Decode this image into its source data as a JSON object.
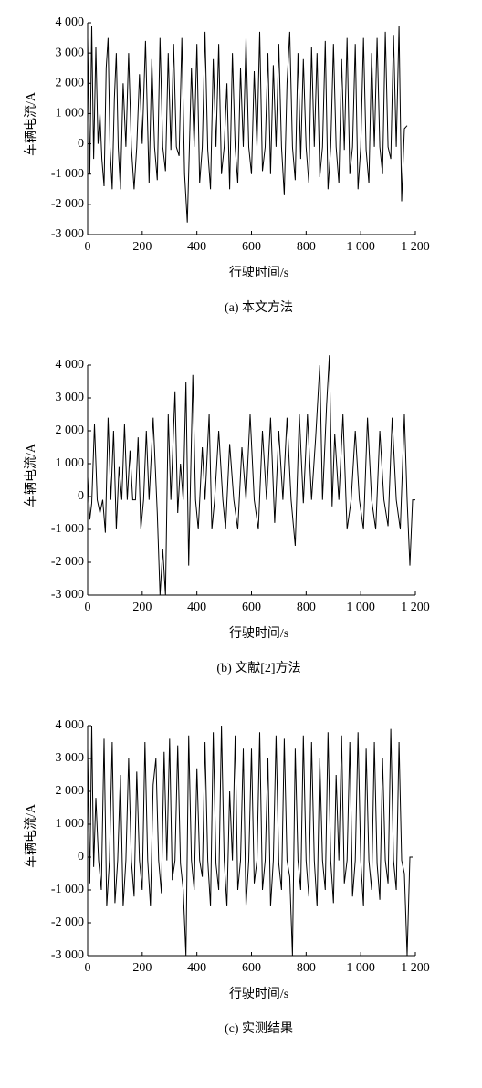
{
  "chart_data": [
    {
      "type": "line",
      "x_label": "行驶时间/s",
      "y_label": "车辆电流/A",
      "caption": "(a) 本文方法",
      "color": "#000000",
      "xlim": [
        0,
        1200
      ],
      "ylim": [
        -3000,
        4000
      ],
      "xticks": [
        0,
        200,
        400,
        600,
        800,
        {
          "value": 1000,
          "label": "1 000"
        },
        {
          "value": 1200,
          "label": "1 200"
        }
      ],
      "yticks": [
        {
          "value": -3000,
          "label": "-3 000"
        },
        {
          "value": -2000,
          "label": "-2 000"
        },
        {
          "value": -1000,
          "label": "-1 000"
        },
        0,
        {
          "value": 1000,
          "label": "1 000"
        },
        {
          "value": 2000,
          "label": "2 000"
        },
        {
          "value": 3000,
          "label": "3 000"
        },
        {
          "value": 4000,
          "label": "4 000"
        }
      ],
      "x": [
        0,
        8,
        15,
        22,
        30,
        38,
        45,
        52,
        60,
        68,
        75,
        82,
        90,
        98,
        105,
        112,
        120,
        130,
        140,
        150,
        160,
        170,
        180,
        190,
        200,
        212,
        225,
        235,
        245,
        255,
        265,
        275,
        285,
        295,
        305,
        315,
        325,
        335,
        345,
        355,
        365,
        372,
        380,
        390,
        400,
        410,
        420,
        430,
        440,
        450,
        460,
        470,
        480,
        490,
        500,
        510,
        520,
        530,
        540,
        550,
        560,
        570,
        580,
        590,
        600,
        610,
        620,
        630,
        640,
        650,
        660,
        670,
        680,
        690,
        700,
        710,
        720,
        730,
        740,
        750,
        760,
        770,
        780,
        790,
        800,
        810,
        820,
        830,
        840,
        850,
        860,
        870,
        880,
        890,
        900,
        910,
        920,
        930,
        940,
        950,
        960,
        970,
        980,
        990,
        1000,
        1010,
        1020,
        1030,
        1040,
        1050,
        1060,
        1070,
        1080,
        1090,
        1100,
        1110,
        1120,
        1130,
        1140,
        1150,
        1160,
        1170
      ],
      "values": [
        3500,
        -1000,
        3900,
        -500,
        3200,
        0,
        1000,
        -500,
        -1400,
        2500,
        3500,
        -100,
        -1500,
        1500,
        3000,
        -100,
        -1500,
        2000,
        -100,
        3000,
        -100,
        -1500,
        -100,
        2300,
        0,
        3400,
        -1300,
        2800,
        -100,
        -1200,
        3500,
        -100,
        -900,
        3000,
        -200,
        3300,
        -100,
        -400,
        3500,
        -1000,
        -2600,
        -300,
        2500,
        -100,
        3300,
        -1300,
        -100,
        3700,
        -200,
        -1500,
        2800,
        -100,
        3300,
        -1000,
        -100,
        2000,
        -1500,
        3000,
        -100,
        -1300,
        2500,
        -100,
        3500,
        -100,
        -1000,
        2400,
        -100,
        3700,
        -900,
        -100,
        3000,
        -1000,
        2600,
        -100,
        3300,
        -100,
        -1700,
        2000,
        3700,
        -100,
        -1200,
        3000,
        -500,
        2800,
        -100,
        -1300,
        3200,
        -100,
        3000,
        -1100,
        -100,
        3400,
        -1500,
        -100,
        3300,
        -100,
        -1300,
        2800,
        -200,
        3500,
        -1000,
        -100,
        3300,
        -1500,
        -100,
        3500,
        -200,
        -1300,
        3000,
        -100,
        3500,
        -100,
        -1000,
        3700,
        -100,
        -500,
        3600,
        -100,
        3900,
        -1900,
        500,
        600
      ]
    },
    {
      "type": "line",
      "x_label": "行驶时间/s",
      "y_label": "车辆电流/A",
      "caption": "(b) 文献[2]方法",
      "color": "#000000",
      "xlim": [
        0,
        1200
      ],
      "ylim": [
        -3000,
        4000
      ],
      "xticks": [
        0,
        200,
        400,
        600,
        800,
        {
          "value": 1000,
          "label": "1 000"
        },
        {
          "value": 1200,
          "label": "1 200"
        }
      ],
      "yticks": [
        {
          "value": -3000,
          "label": "-3 000"
        },
        {
          "value": -2000,
          "label": "-2 000"
        },
        {
          "value": -1000,
          "label": "-1 000"
        },
        0,
        {
          "value": 1000,
          "label": "1 000"
        },
        {
          "value": 2000,
          "label": "2 000"
        },
        {
          "value": 3000,
          "label": "3 000"
        },
        {
          "value": 4000,
          "label": "4 000"
        }
      ],
      "x": [
        0,
        8,
        15,
        25,
        35,
        45,
        55,
        65,
        75,
        85,
        95,
        105,
        115,
        125,
        135,
        145,
        155,
        165,
        175,
        185,
        195,
        205,
        215,
        225,
        240,
        255,
        265,
        275,
        285,
        295,
        305,
        320,
        330,
        340,
        350,
        360,
        370,
        385,
        395,
        405,
        420,
        430,
        445,
        455,
        465,
        480,
        495,
        505,
        520,
        535,
        550,
        565,
        580,
        595,
        610,
        625,
        640,
        655,
        670,
        685,
        700,
        715,
        730,
        745,
        760,
        775,
        790,
        805,
        820,
        835,
        850,
        860,
        875,
        885,
        895,
        905,
        920,
        935,
        950,
        965,
        980,
        995,
        1010,
        1025,
        1040,
        1055,
        1070,
        1085,
        1100,
        1115,
        1130,
        1145,
        1160,
        1170,
        1180,
        1190,
        1200
      ],
      "values": [
        600,
        -700,
        -200,
        2200,
        -100,
        -500,
        -100,
        -1100,
        2400,
        -100,
        2000,
        -1000,
        900,
        -100,
        2200,
        -100,
        1400,
        -100,
        -100,
        1800,
        -1000,
        -100,
        2000,
        -100,
        2400,
        -500,
        -3000,
        -1600,
        -3000,
        2500,
        -100,
        3200,
        -500,
        1000,
        -100,
        3500,
        -2100,
        3700,
        -100,
        -1000,
        1500,
        -100,
        2500,
        -1000,
        -100,
        2000,
        -100,
        -1000,
        1600,
        -100,
        -1000,
        1500,
        -100,
        2500,
        -100,
        -1000,
        2000,
        -100,
        2400,
        -800,
        2000,
        -100,
        2400,
        -100,
        -1500,
        2500,
        -200,
        2500,
        -100,
        1800,
        4000,
        -100,
        2800,
        4300,
        -300,
        1900,
        -100,
        2500,
        -1000,
        -100,
        2000,
        -100,
        -1000,
        2400,
        -100,
        -1000,
        2000,
        -100,
        -900,
        2400,
        -100,
        -1000,
        2500,
        -100,
        -2100,
        -100,
        -100
      ]
    },
    {
      "type": "line",
      "x_label": "行驶时间/s",
      "y_label": "车辆电流/A",
      "caption": "(c) 实测结果",
      "color": "#000000",
      "xlim": [
        0,
        1200
      ],
      "ylim": [
        -3000,
        4000
      ],
      "xticks": [
        0,
        200,
        400,
        600,
        800,
        {
          "value": 1000,
          "label": "1 000"
        },
        {
          "value": 1200,
          "label": "1 200"
        }
      ],
      "yticks": [
        {
          "value": -3000,
          "label": "-3 000"
        },
        {
          "value": -2000,
          "label": "-2 000"
        },
        {
          "value": -1000,
          "label": "-1 000"
        },
        0,
        {
          "value": 1000,
          "label": "1 000"
        },
        {
          "value": 2000,
          "label": "2 000"
        },
        {
          "value": 3000,
          "label": "3 000"
        },
        {
          "value": 4000,
          "label": "4 000"
        }
      ],
      "x": [
        0,
        8,
        15,
        22,
        30,
        40,
        50,
        60,
        70,
        80,
        90,
        100,
        110,
        120,
        130,
        140,
        150,
        160,
        170,
        180,
        190,
        200,
        210,
        220,
        230,
        240,
        250,
        260,
        270,
        280,
        290,
        300,
        310,
        320,
        330,
        340,
        350,
        360,
        370,
        380,
        390,
        400,
        410,
        420,
        430,
        440,
        450,
        460,
        470,
        480,
        490,
        500,
        510,
        520,
        530,
        540,
        550,
        560,
        570,
        580,
        590,
        600,
        610,
        620,
        630,
        640,
        650,
        660,
        670,
        680,
        690,
        700,
        710,
        720,
        730,
        740,
        750,
        760,
        770,
        780,
        790,
        800,
        810,
        820,
        830,
        840,
        850,
        860,
        870,
        880,
        890,
        900,
        910,
        920,
        930,
        940,
        950,
        960,
        970,
        980,
        990,
        1000,
        1010,
        1020,
        1030,
        1040,
        1050,
        1060,
        1070,
        1080,
        1090,
        1100,
        1110,
        1120,
        1130,
        1140,
        1150,
        1160,
        1170,
        1180,
        1190
      ],
      "values": [
        3300,
        -800,
        4000,
        -300,
        1800,
        -100,
        -1000,
        3600,
        -1500,
        -100,
        3500,
        -1400,
        -100,
        2500,
        -1500,
        -100,
        3000,
        -100,
        -1200,
        2600,
        -100,
        -1000,
        3500,
        -100,
        -1500,
        2200,
        3000,
        -100,
        -1100,
        3200,
        -100,
        3600,
        -700,
        -100,
        3400,
        -200,
        -1000,
        -3000,
        3700,
        -100,
        -1000,
        2700,
        -100,
        -600,
        3500,
        -100,
        -1500,
        3800,
        -200,
        -1000,
        4000,
        -100,
        -1500,
        2000,
        -100,
        3700,
        -1000,
        -100,
        3300,
        -1500,
        -100,
        3300,
        -800,
        -100,
        3800,
        -1000,
        -100,
        3000,
        -1500,
        -100,
        3700,
        -200,
        -1000,
        3600,
        -100,
        -600,
        -3000,
        3300,
        -100,
        -1000,
        3700,
        -100,
        -1200,
        3500,
        -100,
        -1500,
        3000,
        -100,
        -1000,
        3800,
        -100,
        -1400,
        2500,
        -100,
        3700,
        -800,
        -100,
        3500,
        -1200,
        -100,
        3800,
        -100,
        -1500,
        3300,
        -100,
        -1000,
        3500,
        -200,
        -1300,
        3000,
        -100,
        -800,
        3900,
        -100,
        -1000,
        3500,
        -100,
        -500,
        -3000,
        0,
        0
      ]
    }
  ]
}
